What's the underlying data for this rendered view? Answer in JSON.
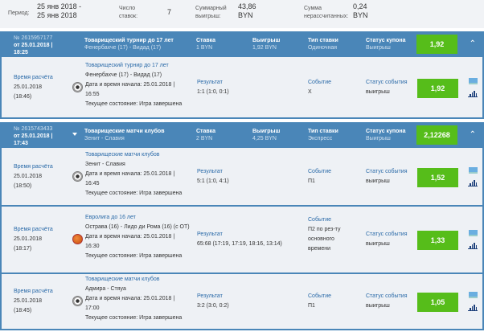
{
  "summary": {
    "period_label": "Период:",
    "period_value": "25 янв 2018 - 25 янв 2018",
    "count_label": "Число ставок:",
    "count_value": "7",
    "win_label": "Суммарный выигрыш:",
    "win_value": "43,86 BYN",
    "unsettled_label": "Сумма нерассчитанных:",
    "unsettled_value": "0,24 BYN"
  },
  "labels": {
    "stake": "Ставка",
    "win": "Выигрыш",
    "bet_type": "Тип ставки",
    "coupon_status": "Статус купона",
    "calc_time": "Время расчёта",
    "result": "Результат",
    "event": "Событие",
    "event_status": "Статус события"
  },
  "coupons": [
    {
      "number": "№ 2615957177",
      "date": "от 25.01.2018 | 18:25",
      "title": "Товарищеский турнир до 17 лет",
      "match": "Фенербахче (17) - Видад (17)",
      "stake": "1 BYN",
      "win": "1,92 BYN",
      "type": "Одиночная",
      "status": "Выигрыш",
      "odds": "1,92",
      "events": [
        {
          "calc_date": "25.01.2018",
          "calc_time": "(18:46)",
          "sport": "soccer",
          "league": "Товарищеский турнир до 17 лет",
          "match": "Фенербахче (17) - Видад (17)",
          "start": "Дата и время начала: 25.01.2018 | 16:55",
          "state": "Текущее состояние: Игра завершена",
          "result": "1:1 (1:0, 0:1)",
          "event": "X",
          "status": "выигрыш",
          "odds": "1,92"
        }
      ]
    },
    {
      "number": "№ 2615743433",
      "date": "от 25.01.2018 | 17:43",
      "title": "Товарищеские матчи клубов",
      "match": "Зенит - Славия",
      "stake": "2 BYN",
      "win": "4,25 BYN",
      "type": "Экспресс",
      "status": "Выигрыш",
      "odds": "2,12268",
      "events": [
        {
          "calc_date": "25.01.2018",
          "calc_time": "(18:50)",
          "sport": "soccer",
          "league": "Товарищеские матчи клубов",
          "match": "Зенит - Славия",
          "start": "Дата и время начала: 25.01.2018 | 16:45",
          "state": "Текущее состояние: Игра завершена",
          "result": "5:1 (1:0, 4:1)",
          "event": "П1",
          "status": "выигрыш",
          "odds": "1,52"
        },
        {
          "calc_date": "25.01.2018",
          "calc_time": "(18:17)",
          "sport": "basketball",
          "league": "Евролига до 16 лет",
          "match": "Острава (16) - Лидо ди Рома (16) (с ОТ)",
          "start": "Дата и время начала: 25.01.2018 | 16:30",
          "state": "Текущее состояние: Игра завершена",
          "result": "65:68 (17:19, 17:19, 18:16, 13:14)",
          "event": "П2 по рез-ту основного времени",
          "status": "выигрыш",
          "odds": "1,33"
        },
        {
          "calc_date": "25.01.2018",
          "calc_time": "(18:45)",
          "sport": "soccer",
          "league": "Товарищеские матчи клубов",
          "match": "Адмира - Стяуа",
          "start": "Дата и время начала: 25.01.2018 | 17:00",
          "state": "Текущее состояние: Игра завершена",
          "result": "3:2 (3:0, 0:2)",
          "event": "П1",
          "status": "выигрыш",
          "odds": "1,05"
        }
      ]
    }
  ]
}
